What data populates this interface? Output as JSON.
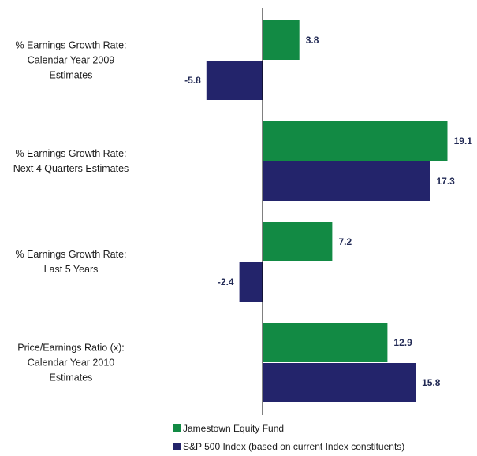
{
  "colors": {
    "jamestown": "#128a44",
    "sp500": "#23246b",
    "axis": "#000000"
  },
  "chart_data": {
    "type": "bar",
    "orientation": "horizontal",
    "categories": [
      [
        "% Earnings Growth Rate:",
        "Calendar Year 2009",
        "Estimates"
      ],
      [
        "% Earnings Growth Rate:",
        "Next 4 Quarters Estimates"
      ],
      [
        "% Earnings Growth Rate:",
        "Last 5 Years"
      ],
      [
        "Price/Earnings Ratio (x):",
        "Calendar Year 2010",
        "Estimates"
      ]
    ],
    "series": [
      {
        "name": "Jamestown Equity Fund",
        "values": [
          3.8,
          19.1,
          7.2,
          12.9
        ],
        "labels": [
          "3.8",
          "19.1",
          "7.2",
          "12.9"
        ]
      },
      {
        "name": "S&P 500 Index (based on current Index constituents)",
        "values": [
          -5.8,
          17.3,
          -2.4,
          15.8
        ],
        "labels": [
          "-5.8",
          "17.3",
          "-2.4",
          "15.8"
        ]
      }
    ],
    "xlim": [
      -6.6,
      20.6
    ],
    "grid": false,
    "legend": "bottom-center"
  }
}
